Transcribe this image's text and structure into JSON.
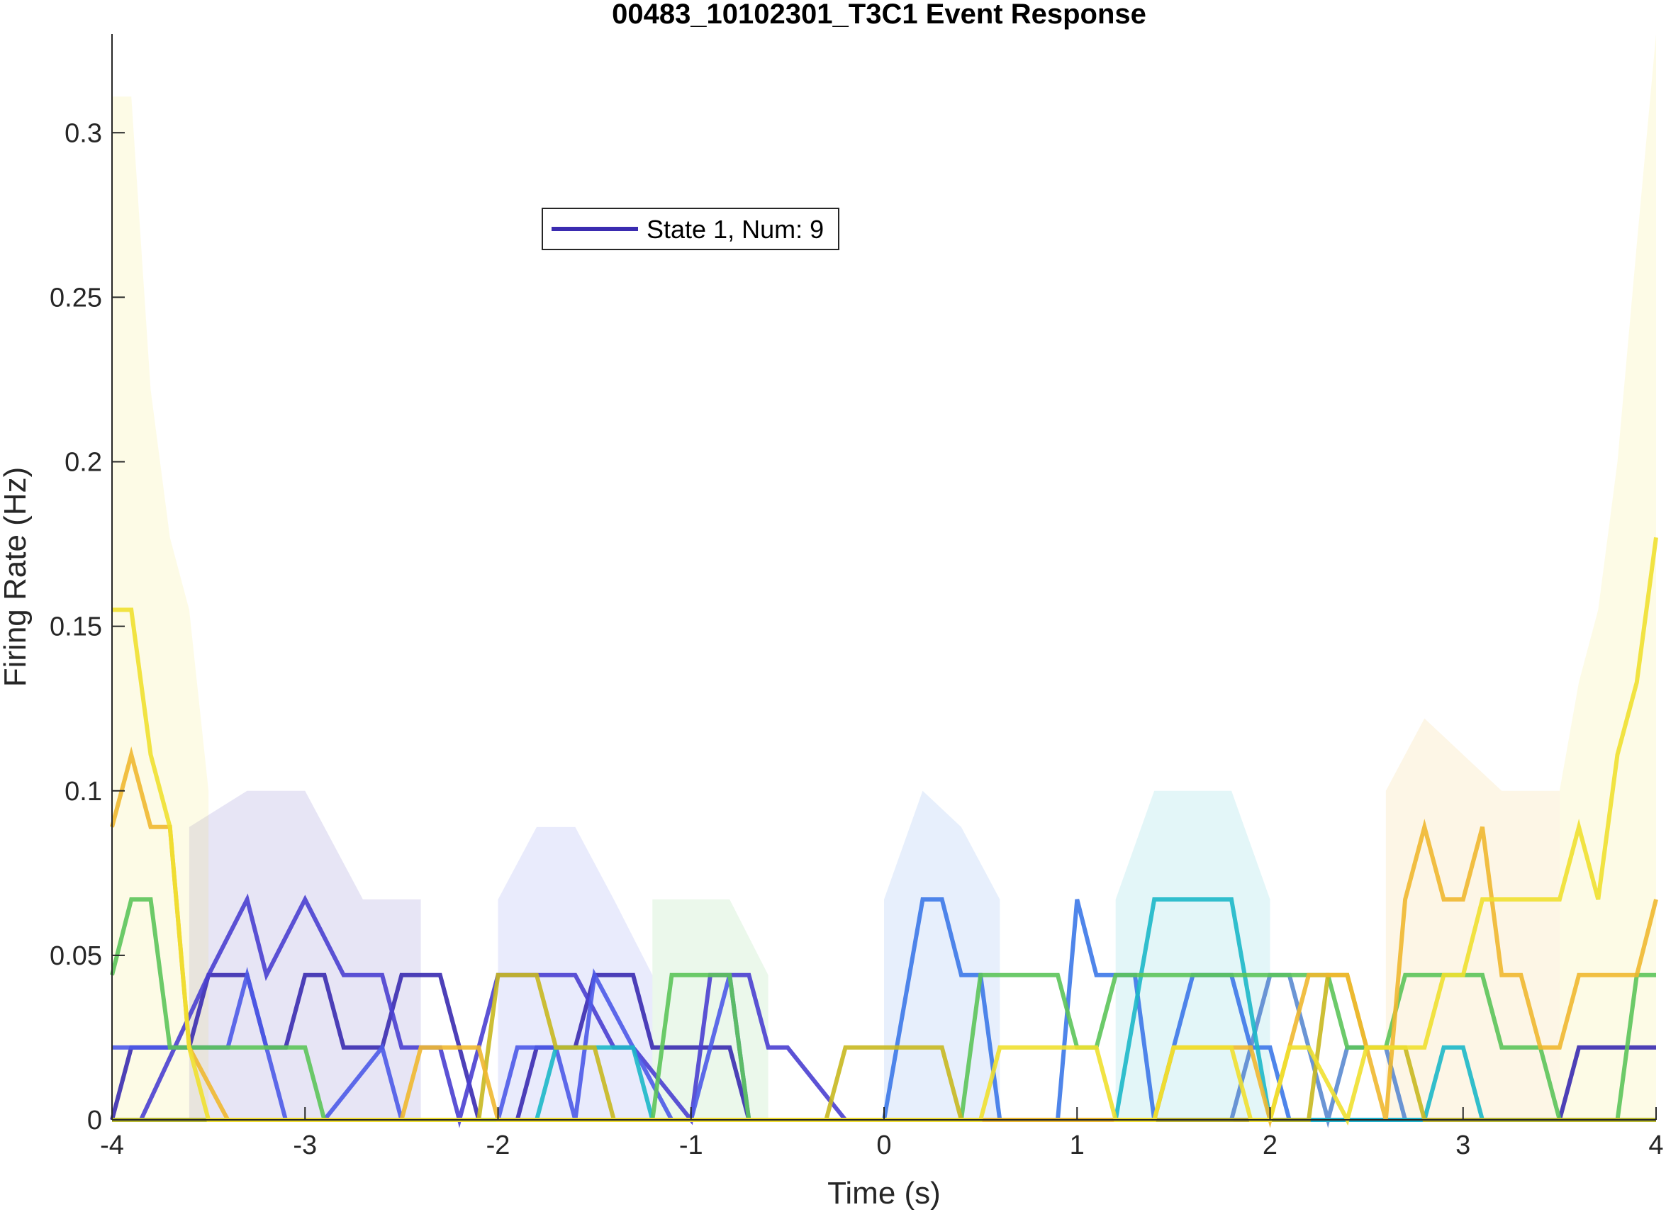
{
  "chart_data": {
    "type": "line",
    "title": "00483_10102301_T3C1 Event Response",
    "xlabel": "Time (s)",
    "ylabel": "Firing Rate (Hz)",
    "xlim": [
      -4,
      4
    ],
    "ylim": [
      0,
      0.33
    ],
    "xticks": [
      -4,
      -3,
      -2,
      -1,
      0,
      1,
      2,
      3,
      4
    ],
    "xtick_labels": [
      "-4",
      "-3",
      "-2",
      "-1",
      "0",
      "1",
      "2",
      "3",
      "4"
    ],
    "yticks": [
      0,
      0.05,
      0.1,
      0.15,
      0.2,
      0.25,
      0.3
    ],
    "ytick_labels": [
      "0",
      "0.05",
      "0.1",
      "0.15",
      "0.2",
      "0.25",
      "0.3"
    ],
    "grid": false,
    "legend_position": "top-center",
    "legend_entries": [
      {
        "label": "State 1, Num: 9",
        "color": "#3a2bb0"
      }
    ],
    "series": [
      {
        "color": "#3a2bb0",
        "x": [
          -4,
          -3.9,
          -3.6,
          -3.5,
          -3.3,
          -3.2,
          -3.1,
          -3.0,
          -2.9,
          -2.8,
          -2.6,
          -2.5,
          -2.3,
          -2.1,
          -1.9,
          -1.8,
          -1.6,
          -1.5,
          -1.3,
          -1.2,
          -0.8,
          -0.7,
          -0.5,
          -0.4,
          0,
          3.4,
          3.5,
          3.6,
          3.7,
          3.8,
          4
        ],
        "y": [
          0,
          0.022,
          0.022,
          0.044,
          0.044,
          0.022,
          0.022,
          0.044,
          0.044,
          0.022,
          0.022,
          0.044,
          0.044,
          0.0,
          0.0,
          0.022,
          0.022,
          0.044,
          0.044,
          0.022,
          0.022,
          0.0,
          0.0,
          0.0,
          0.0,
          0.0,
          0.0,
          0.022,
          0.022,
          0.022,
          0.022
        ]
      },
      {
        "color": "#4a3fd0",
        "x": [
          -4,
          -3.85,
          -3.5,
          -3.3,
          -3.2,
          -3.0,
          -2.8,
          -2.6,
          -2.5,
          -2.3,
          -2.2,
          -2.0,
          -1.9,
          -1.6,
          -1.4,
          -1.3,
          -1.0,
          -0.9,
          -0.7,
          -0.6,
          -0.5,
          -0.2,
          0
        ],
        "y": [
          0,
          0.0,
          0.044,
          0.067,
          0.044,
          0.067,
          0.044,
          0.044,
          0.022,
          0.022,
          0.0,
          0.044,
          0.044,
          0.044,
          0.022,
          0.022,
          0.0,
          0.044,
          0.044,
          0.022,
          0.022,
          0.0,
          0.0
        ]
      },
      {
        "color": "#4c5ae8",
        "x": [
          -4,
          -3.8,
          -3.4,
          -3.3,
          -3.1,
          -3.0,
          -2.9,
          -2.6,
          -2.5,
          -2.0,
          -1.9,
          -1.7,
          -1.6,
          -1.5,
          -1.1,
          -1.0,
          -0.8,
          -0.7,
          -0.6,
          -0.4,
          0
        ],
        "y": [
          0.022,
          0.022,
          0.022,
          0.044,
          0.0,
          0.0,
          0.0,
          0.022,
          0.0,
          0.0,
          0.022,
          0.022,
          0.0,
          0.044,
          0.0,
          0.0,
          0.044,
          0.0,
          0.0,
          0.0,
          0.0
        ]
      },
      {
        "color": "#3c78e8",
        "x": [
          -4,
          0,
          0.2,
          0.3,
          0.4,
          0.5,
          0.6,
          0.9,
          1.0,
          1.1,
          1.3,
          1.4,
          1.6,
          1.8,
          1.9,
          2.0,
          2.1,
          2.3,
          2.5,
          4
        ],
        "y": [
          0,
          0,
          0.067,
          0.067,
          0.044,
          0.044,
          0.0,
          0.0,
          0.067,
          0.044,
          0.044,
          0.0,
          0.044,
          0.044,
          0.022,
          0.022,
          0.0,
          0.0,
          0.0,
          0.0
        ]
      },
      {
        "color": "#5a8ad0",
        "x": [
          -4,
          1.6,
          1.8,
          2.0,
          2.1,
          2.3,
          2.4,
          2.6,
          2.7,
          4
        ],
        "y": [
          0,
          0,
          0.0,
          0.044,
          0.044,
          0.0,
          0.022,
          0.022,
          0.0,
          0.0
        ]
      },
      {
        "color": "#1cb8c8",
        "x": [
          -4,
          -1.8,
          -1.7,
          -1.3,
          -1.2,
          1.2,
          1.4,
          1.7,
          1.8,
          2.0,
          2.8,
          2.9,
          3.0,
          3.1,
          4
        ],
        "y": [
          0,
          0,
          0.022,
          0.022,
          0.0,
          0.0,
          0.067,
          0.067,
          0.067,
          0.0,
          0.0,
          0.022,
          0.022,
          0.0,
          0.0
        ]
      },
      {
        "color": "#5cc45a",
        "x": [
          -4,
          -3.9,
          -3.8,
          -3.7,
          -3.6,
          -3.0,
          -2.9,
          -1.2,
          -1.1,
          -0.8,
          -0.7,
          0.4,
          0.5,
          0.9,
          1.0,
          1.1,
          1.2,
          1.3,
          2.3,
          2.4,
          2.6,
          2.7,
          3.1,
          3.2,
          3.4,
          3.5,
          3.8,
          3.9,
          4
        ],
        "y": [
          0.044,
          0.067,
          0.067,
          0.022,
          0.022,
          0.022,
          0.0,
          0.0,
          0.044,
          0.044,
          0.0,
          0.0,
          0.044,
          0.044,
          0.022,
          0.022,
          0.044,
          0.044,
          0.044,
          0.022,
          0.022,
          0.044,
          0.044,
          0.022,
          0.022,
          0.0,
          0.0,
          0.044,
          0.044
        ]
      },
      {
        "color": "#c8b820",
        "x": [
          -4,
          -2.1,
          -2.0,
          -1.8,
          -1.7,
          -1.5,
          -1.4,
          -0.3,
          -0.2,
          0.3,
          0.4,
          2.2,
          2.3,
          2.4,
          2.5,
          2.7,
          2.8,
          4
        ],
        "y": [
          0,
          0,
          0.044,
          0.044,
          0.022,
          0.022,
          0.0,
          0.0,
          0.022,
          0.022,
          0.0,
          0.0,
          0.044,
          0.044,
          0.022,
          0.022,
          0.0,
          0.0
        ]
      },
      {
        "color": "#f0b830",
        "x": [
          -4,
          -3.9,
          -3.8,
          -3.7,
          -3.6,
          -3.4,
          -3.3,
          -2.5,
          -2.4,
          -2.1,
          -2.0,
          -1.9,
          1.4,
          1.5,
          1.9,
          2.0,
          2.2,
          2.4,
          2.6,
          2.7,
          2.8,
          2.9,
          3.0,
          3.1,
          3.2,
          3.3,
          3.4,
          3.5,
          3.6,
          3.7,
          3.9,
          4
        ],
        "y": [
          0.089,
          0.111,
          0.089,
          0.089,
          0.022,
          0.0,
          0.0,
          0.0,
          0.022,
          0.022,
          0.0,
          0.0,
          0.0,
          0.022,
          0.022,
          0.0,
          0.044,
          0.044,
          0.0,
          0.067,
          0.089,
          0.067,
          0.067,
          0.089,
          0.044,
          0.044,
          0.022,
          0.022,
          0.044,
          0.044,
          0.044,
          0.067
        ]
      },
      {
        "color": "#f0e030",
        "x": [
          -4,
          -3.9,
          -3.8,
          -3.7,
          -3.6,
          -3.5,
          -3.4,
          0.5,
          0.6,
          1.0,
          1.1,
          1.2,
          1.4,
          1.5,
          1.8,
          1.9,
          2.0,
          2.1,
          2.2,
          2.4,
          2.5,
          2.7,
          2.8,
          2.9,
          3.0,
          3.1,
          3.5,
          3.6,
          3.7,
          3.8,
          3.9,
          4
        ],
        "y": [
          0.155,
          0.155,
          0.111,
          0.089,
          0.022,
          0.0,
          0.0,
          0.0,
          0.022,
          0.022,
          0.022,
          0.0,
          0.0,
          0.022,
          0.022,
          0.0,
          0.0,
          0.022,
          0.022,
          0.0,
          0.022,
          0.022,
          0.022,
          0.044,
          0.044,
          0.067,
          0.067,
          0.089,
          0.067,
          0.111,
          0.133,
          0.177
        ]
      }
    ],
    "bands": [
      {
        "color": "#3a2bb0",
        "x": [
          -3.6,
          -3.3,
          -3.0,
          -2.7,
          -2.4
        ],
        "upper": [
          0.089,
          0.1,
          0.1,
          0.067,
          0.067
        ]
      },
      {
        "color": "#4c5ae8",
        "x": [
          -2.0,
          -1.8,
          -1.6,
          -1.4,
          -1.2
        ],
        "upper": [
          0.067,
          0.089,
          0.089,
          0.067,
          0.044
        ]
      },
      {
        "color": "#3c78e8",
        "x": [
          0.0,
          0.2,
          0.4,
          0.6
        ],
        "upper": [
          0.067,
          0.1,
          0.089,
          0.067
        ]
      },
      {
        "color": "#1cb8c8",
        "x": [
          1.2,
          1.4,
          1.7,
          1.8,
          2.0
        ],
        "upper": [
          0.067,
          0.1,
          0.1,
          0.1,
          0.067
        ]
      },
      {
        "color": "#5cc45a",
        "x": [
          -1.2,
          -1.0,
          -0.8,
          -0.6
        ],
        "upper": [
          0.067,
          0.067,
          0.067,
          0.044
        ]
      },
      {
        "color": "#f0b830",
        "x": [
          2.6,
          2.8,
          3.0,
          3.2,
          3.5
        ],
        "upper": [
          0.1,
          0.122,
          0.111,
          0.1,
          0.1
        ]
      },
      {
        "color": "#f0e030",
        "x": [
          -4.0,
          -3.9,
          -3.8,
          -3.7,
          -3.6,
          -3.5
        ],
        "upper": [
          0.311,
          0.311,
          0.222,
          0.177,
          0.155,
          0.1
        ]
      },
      {
        "color": "#f0e030",
        "x": [
          3.5,
          3.6,
          3.7,
          3.8,
          3.9,
          4.0
        ],
        "upper": [
          0.1,
          0.133,
          0.155,
          0.2,
          0.266,
          0.33
        ]
      }
    ]
  }
}
